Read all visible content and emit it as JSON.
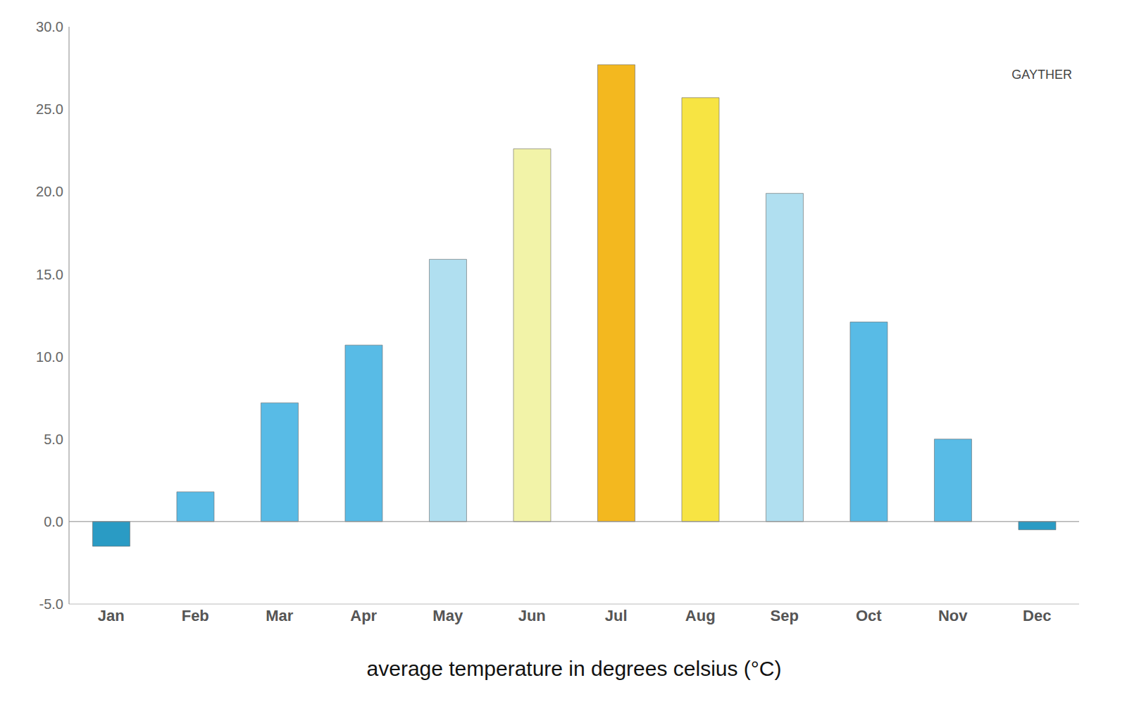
{
  "chart_data": {
    "type": "bar",
    "categories": [
      "Jan",
      "Feb",
      "Mar",
      "Apr",
      "May",
      "Jun",
      "Jul",
      "Aug",
      "Sep",
      "Oct",
      "Nov",
      "Dec"
    ],
    "values": [
      -1.5,
      1.8,
      7.2,
      10.7,
      15.9,
      22.6,
      27.7,
      25.7,
      19.9,
      12.1,
      5.0,
      -0.5
    ],
    "colors": [
      "#2a9bc4",
      "#58bbe6",
      "#58bbe6",
      "#58bbe6",
      "#b0dff0",
      "#f2f3a8",
      "#f3b81f",
      "#f7e443",
      "#b0dff0",
      "#58bbe6",
      "#58bbe6",
      "#2a9bc4"
    ],
    "x_label": "average temperature in degrees celsius (°C)",
    "ylim": [
      -5,
      30
    ],
    "yticks": [
      {
        "value": -5,
        "label": "-5.0"
      },
      {
        "value": 0,
        "label": "0.0"
      },
      {
        "value": 5,
        "label": "5.0"
      },
      {
        "value": 10,
        "label": "10.0"
      },
      {
        "value": 15,
        "label": "15.0"
      },
      {
        "value": 20,
        "label": "20.0"
      },
      {
        "value": 25,
        "label": "25.0"
      },
      {
        "value": 30,
        "label": "30.0"
      }
    ],
    "grid": false,
    "annotations": [
      "GAYTHER"
    ]
  }
}
